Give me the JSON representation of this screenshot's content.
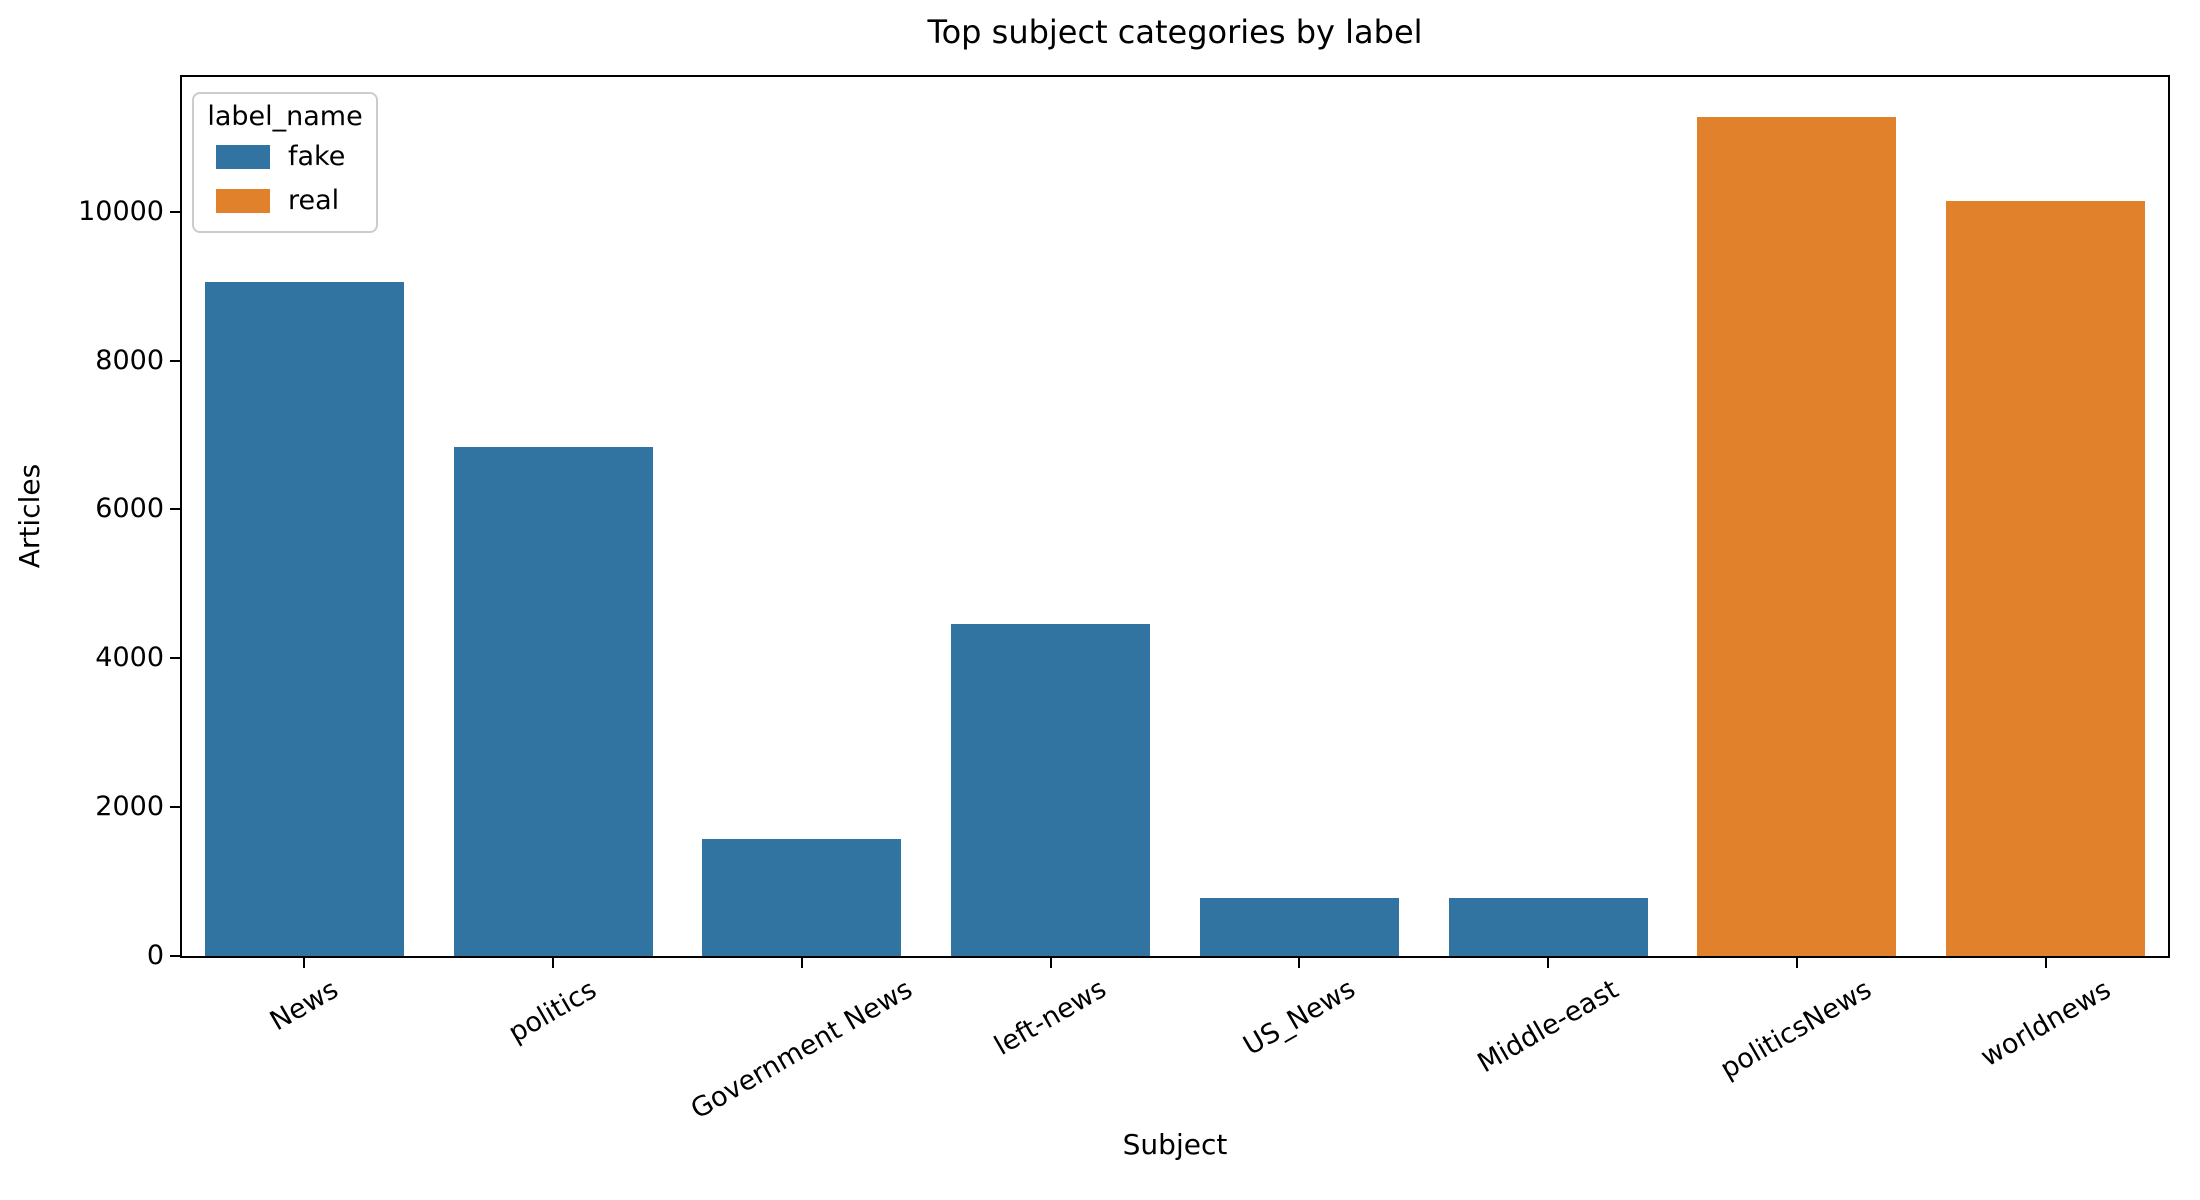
{
  "chart_data": {
    "type": "bar",
    "title": "Top subject categories by label",
    "xlabel": "Subject",
    "ylabel": "Articles",
    "categories": [
      "News",
      "politics",
      "Government News",
      "left-news",
      "US_News",
      "Middle-east",
      "politicsNews",
      "worldnews"
    ],
    "values": [
      9050,
      6841,
      1570,
      4459,
      783,
      778,
      11272,
      10145
    ],
    "bar_series": [
      "fake",
      "fake",
      "fake",
      "fake",
      "fake",
      "fake",
      "real",
      "real"
    ],
    "legend": {
      "title": "label_name",
      "entries": [
        {
          "label": "fake",
          "color": "#3274a1"
        },
        {
          "label": "real",
          "color": "#e1812c"
        }
      ]
    },
    "ylim": [
      0,
      11836
    ],
    "yticks": [
      0,
      2000,
      4000,
      6000,
      8000,
      10000
    ],
    "x_tick_rotation_deg": 30,
    "grid": false,
    "legend_position": "upper left",
    "bar_relative_width": 0.8
  }
}
